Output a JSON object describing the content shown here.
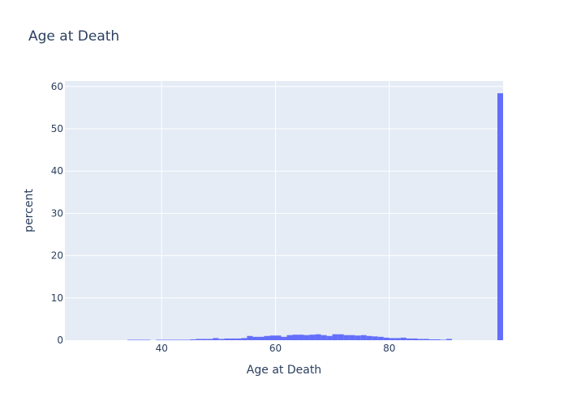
{
  "chart_data": {
    "type": "bar",
    "title": "Age at Death",
    "xlabel": "Age at Death",
    "ylabel": "percent",
    "xlim": [
      23,
      100
    ],
    "ylim": [
      0,
      61.3
    ],
    "x_ticks": [
      40,
      60,
      80
    ],
    "y_ticks": [
      0,
      10,
      20,
      30,
      40,
      50,
      60
    ],
    "bin_width": 1,
    "grid": true,
    "bar_color": "#636efa",
    "plot_bg": "#e5ecf6",
    "x": [
      34,
      35,
      36,
      37,
      39,
      40,
      41,
      42,
      43,
      44,
      45,
      46,
      47,
      48,
      49,
      50,
      51,
      52,
      53,
      54,
      55,
      56,
      57,
      58,
      59,
      60,
      61,
      62,
      63,
      64,
      65,
      66,
      67,
      68,
      69,
      70,
      71,
      72,
      73,
      74,
      75,
      76,
      77,
      78,
      79,
      80,
      81,
      82,
      83,
      84,
      85,
      86,
      87,
      88,
      89,
      90,
      99
    ],
    "values": [
      0.1,
      0.1,
      0.1,
      0.1,
      0.1,
      0.1,
      0.1,
      0.1,
      0.1,
      0.1,
      0.2,
      0.3,
      0.3,
      0.3,
      0.5,
      0.3,
      0.4,
      0.4,
      0.4,
      0.5,
      1.0,
      0.8,
      0.8,
      1.0,
      1.1,
      1.1,
      0.8,
      1.2,
      1.3,
      1.3,
      1.2,
      1.3,
      1.4,
      1.2,
      1.0,
      1.4,
      1.4,
      1.2,
      1.2,
      1.1,
      1.2,
      1.0,
      0.9,
      0.8,
      0.6,
      0.5,
      0.5,
      0.6,
      0.4,
      0.4,
      0.3,
      0.3,
      0.2,
      0.2,
      0.1,
      0.3,
      58.4
    ]
  }
}
